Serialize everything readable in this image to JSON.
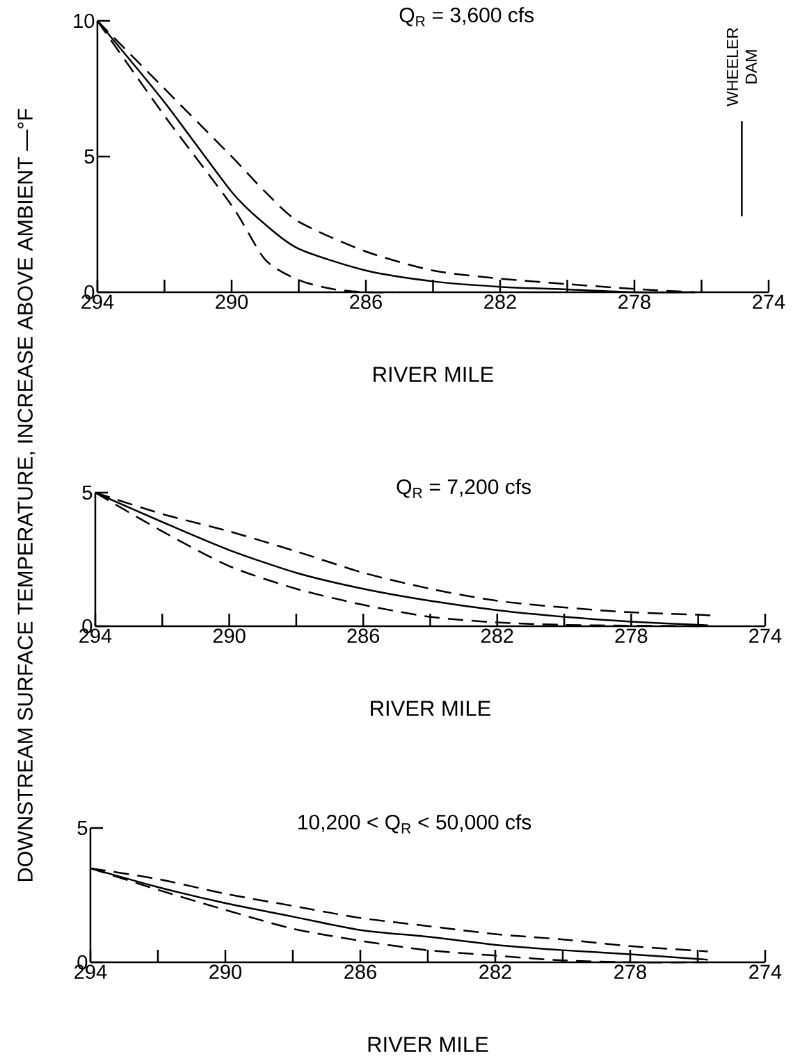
{
  "chart_data": [
    {
      "type": "line",
      "title": "Q$_{R}$ = 3,600 cfs",
      "xlabel": "RIVER MILE",
      "xlim": [
        294,
        274
      ],
      "ylim": [
        0,
        10
      ],
      "xticks": [
        294,
        290,
        286,
        282,
        278,
        274
      ],
      "yticks": [
        0,
        5,
        10
      ],
      "ref_lines": [
        {
          "axis": "x",
          "value": 274.8,
          "label": "WHEELER DAM"
        }
      ],
      "series": [
        {
          "color": "#000000",
          "line_style": "dashed",
          "x": [
            294,
            292,
            290,
            289,
            288,
            286,
            284,
            282,
            280,
            278,
            276.2
          ],
          "values": [
            10,
            7.5,
            5,
            3.7,
            2.6,
            1.5,
            0.8,
            0.5,
            0.3,
            0.12,
            0
          ]
        },
        {
          "color": "#000000",
          "line_style": "solid",
          "x": [
            294,
            292,
            290,
            289,
            288,
            286,
            284,
            282,
            280,
            278,
            276.2
          ],
          "values": [
            10,
            7,
            3.7,
            2.5,
            1.6,
            0.8,
            0.4,
            0.2,
            0.1,
            0,
            0
          ]
        },
        {
          "color": "#000000",
          "line_style": "dashed",
          "x": [
            294,
            292,
            290,
            289,
            288,
            287,
            286,
            285.2
          ],
          "values": [
            10,
            6.5,
            3.2,
            1.2,
            0.45,
            0.12,
            0,
            0
          ]
        }
      ]
    },
    {
      "type": "line",
      "title": "Q$_{R}$ = 7,200 cfs",
      "xlabel": "RIVER MILE",
      "ylabel": "DOWNSTREAM SURFACE TEMPERATURE, INCREASE ABOVE AMBIENT —°F",
      "xlim": [
        294,
        274
      ],
      "ylim": [
        0,
        5
      ],
      "xticks": [
        294,
        290,
        286,
        282,
        278,
        274
      ],
      "yticks": [
        0,
        5
      ],
      "series": [
        {
          "color": "#000000",
          "line_style": "dashed",
          "x": [
            294,
            292,
            290,
            288,
            286,
            284,
            282,
            280,
            278,
            276,
            275.6
          ],
          "values": [
            5,
            4.2,
            3.55,
            2.8,
            2,
            1.4,
            0.95,
            0.7,
            0.52,
            0.43,
            0.4
          ]
        },
        {
          "color": "#000000",
          "line_style": "solid",
          "x": [
            294,
            292,
            290,
            288,
            286,
            284,
            282,
            280,
            278,
            276,
            275.7
          ],
          "values": [
            5,
            3.9,
            2.85,
            2,
            1.4,
            0.95,
            0.6,
            0.35,
            0.17,
            0.05,
            0.03
          ]
        },
        {
          "color": "#000000",
          "line_style": "dashed",
          "x": [
            294,
            292,
            290,
            288,
            286,
            284,
            282,
            280,
            278,
            275.7
          ],
          "values": [
            5,
            3.55,
            2.25,
            1.4,
            0.8,
            0.35,
            0.14,
            0.05,
            0.02,
            0
          ]
        }
      ]
    },
    {
      "type": "line",
      "title": "10,200 < Q$_{R}$ < 50,000 cfs",
      "xlabel": "RIVER MILE",
      "xlim": [
        294,
        274
      ],
      "ylim": [
        0,
        5
      ],
      "xticks": [
        294,
        290,
        286,
        282,
        278,
        274
      ],
      "yticks": [
        0,
        5
      ],
      "series": [
        {
          "color": "#000000",
          "line_style": "dashed",
          "x": [
            294,
            292,
            290,
            288,
            286,
            284,
            282,
            280,
            278,
            276,
            275.7
          ],
          "values": [
            3.5,
            3.1,
            2.55,
            2.1,
            1.65,
            1.35,
            1.05,
            0.85,
            0.6,
            0.43,
            0.4
          ]
        },
        {
          "color": "#000000",
          "line_style": "solid",
          "x": [
            294,
            292,
            290,
            288,
            286,
            284,
            282,
            280,
            278,
            276,
            275.7
          ],
          "values": [
            3.5,
            2.8,
            2.2,
            1.7,
            1.2,
            0.95,
            0.65,
            0.45,
            0.3,
            0.12,
            0.1
          ]
        },
        {
          "color": "#000000",
          "line_style": "dashed",
          "x": [
            294,
            292,
            290,
            288,
            286,
            284,
            282,
            280,
            278,
            275.7
          ],
          "values": [
            3.5,
            2.7,
            1.95,
            1.25,
            0.8,
            0.45,
            0.25,
            0.07,
            0,
            0
          ]
        }
      ]
    }
  ]
}
